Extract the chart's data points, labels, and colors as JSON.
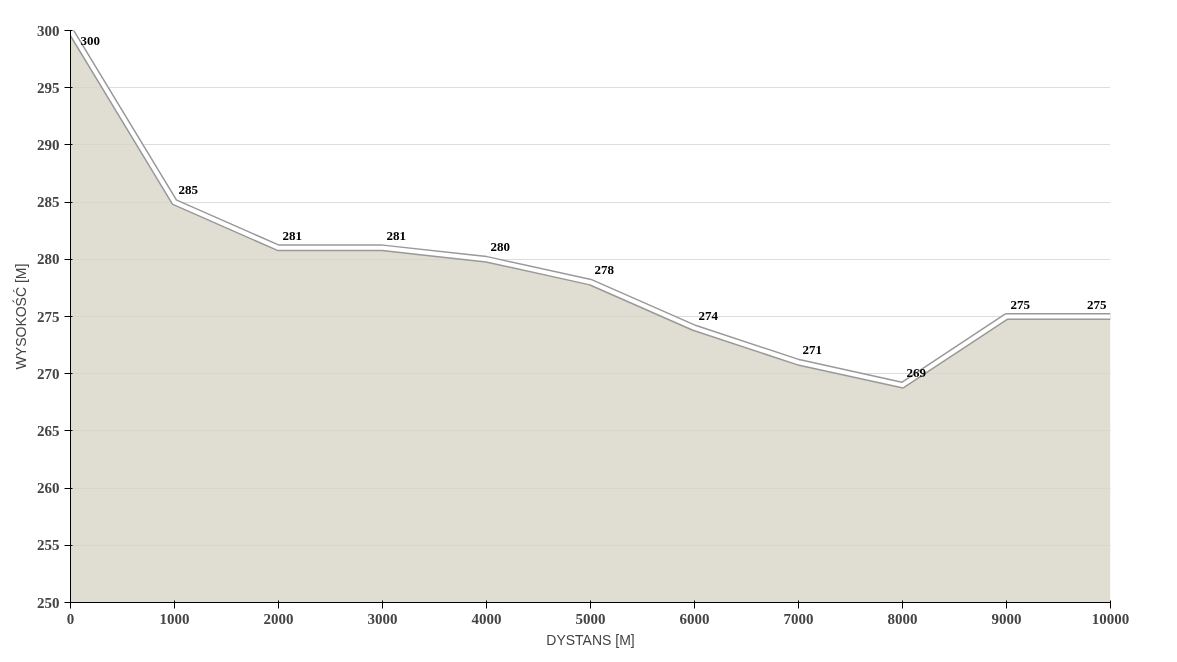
{
  "chart_data": {
    "type": "area",
    "xlabel": "DYSTANS [M]",
    "ylabel": "WYSOKOŚĆ [M]",
    "x": [
      0,
      1000,
      2000,
      3000,
      4000,
      5000,
      6000,
      7000,
      8000,
      9000,
      10000
    ],
    "series": [
      {
        "color": "#d8d5c8",
        "values": [
          300,
          285,
          281,
          281,
          280,
          278,
          274,
          271,
          269,
          275,
          275
        ]
      }
    ],
    "xlim": [
      0,
      10000
    ],
    "xticks": [
      0,
      1000,
      2000,
      3000,
      4000,
      5000,
      6000,
      7000,
      8000,
      9000,
      10000
    ],
    "ylim": [
      250,
      300
    ],
    "yticks": [
      250,
      255,
      260,
      265,
      270,
      275,
      280,
      285,
      290,
      295,
      300
    ],
    "grid": "y",
    "data_labels": true
  }
}
